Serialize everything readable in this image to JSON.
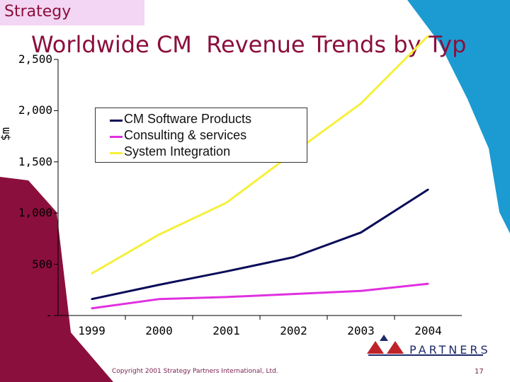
{
  "section_tag": "Strategy",
  "slide_title": "Worldwide CM  Revenue Trends by Typ",
  "footer": "Copyright 2001 Strategy Partners International, Ltd.",
  "page_number": "17",
  "logo_text": "PARTNERS",
  "colors": {
    "tag_bg": "#f3d6f3",
    "title": "#8b0f3c",
    "left_band": "#8b0f3c",
    "right_band": "#1b9bd1",
    "logo": "#1f2a6b",
    "logo_accent": "#c0222a"
  },
  "chart_data": {
    "type": "line",
    "title": "",
    "xlabel": "",
    "ylabel": "$m",
    "x": [
      "1999",
      "2000",
      "2001",
      "2002",
      "2003",
      "2004"
    ],
    "y_tick_labels": [
      "2,500",
      "2,000",
      "1,500",
      "1,000",
      "500",
      "-"
    ],
    "ylim": [
      0,
      2500
    ],
    "grid": "none",
    "legend_position": "top-center",
    "series": [
      {
        "name": "CM  Software Products",
        "color": "#0a0a5a",
        "values": [
          160,
          300,
          430,
          570,
          810,
          1230
        ]
      },
      {
        "name": "Consulting & services",
        "color": "#e030e0",
        "values": [
          70,
          160,
          180,
          210,
          240,
          310
        ]
      },
      {
        "name": "System Integration",
        "color": "#f5f03a",
        "values": [
          410,
          790,
          1100,
          1590,
          2070,
          2730
        ]
      }
    ]
  }
}
